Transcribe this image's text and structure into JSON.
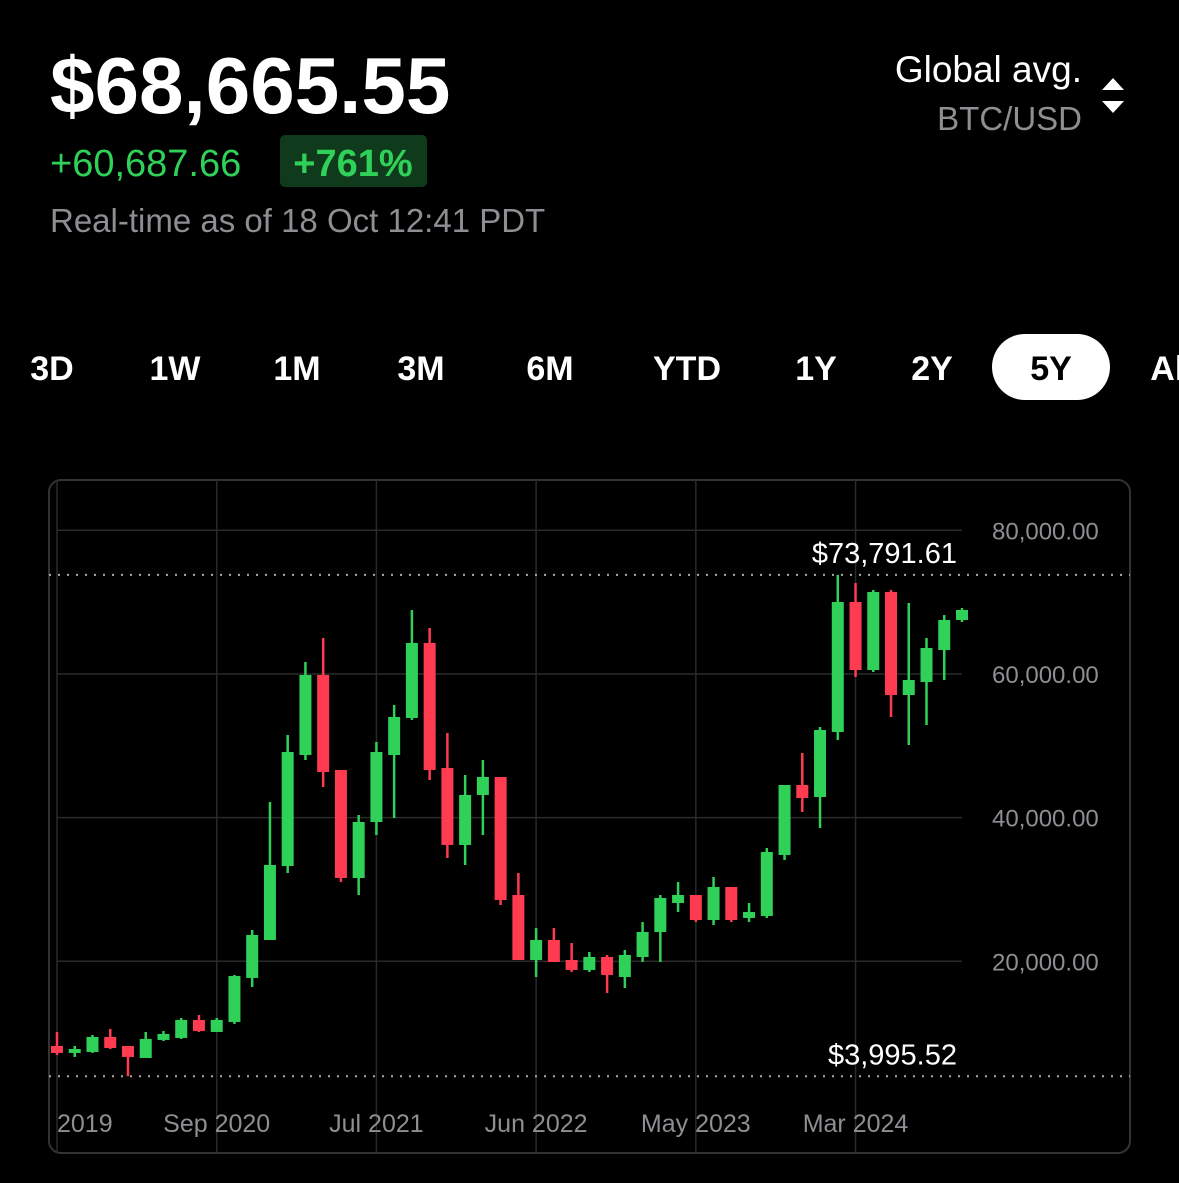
{
  "header": {
    "price": "$68,665.55",
    "change": "+60,687.66",
    "change_percent": "+761%",
    "timestamp": "Real-time as of 18 Oct 12:41 PDT",
    "source": "Global avg.",
    "pair": "BTC/USD"
  },
  "range_tabs": [
    "3D",
    "1W",
    "1M",
    "3M",
    "6M",
    "YTD",
    "1Y",
    "2Y",
    "5Y",
    "All"
  ],
  "selected_range": "5Y",
  "chart_data": {
    "type": "candlestick",
    "categories": [
      "2019",
      null,
      null,
      null,
      null,
      null,
      null,
      null,
      null,
      "Sep 2020",
      null,
      null,
      null,
      null,
      null,
      null,
      null,
      null,
      "Jul 2021",
      null,
      null,
      null,
      null,
      null,
      null,
      null,
      null,
      "Jun 2022",
      null,
      null,
      null,
      null,
      null,
      null,
      null,
      null,
      "May 2023",
      null,
      null,
      null,
      null,
      null,
      null,
      null,
      null,
      "Mar 2024",
      null,
      null,
      null,
      null,
      null,
      null
    ],
    "open": [
      8213,
      7238,
      7378,
      9466,
      8213,
      6542,
      9049,
      9327,
      11832,
      10162,
      11554,
      17678,
      22968,
      33269,
      48720,
      59856,
      46632,
      31598,
      39394,
      48720,
      53870,
      64310,
      46910,
      36192,
      43152,
      45658,
      29232,
      20184,
      22968,
      20184,
      18792,
      20602,
      17818,
      20602,
      24082,
      28118,
      29232,
      25752,
      30346,
      26030,
      26309,
      34800,
      44544,
      42874,
      51922,
      70018,
      60552,
      71410,
      57072,
      58882,
      63336,
      67512
    ],
    "high": [
      10162,
      8213,
      9744,
      10579,
      8213,
      10162,
      10300,
      12110,
      12528,
      12110,
      18096,
      24360,
      42178,
      51504,
      61666,
      65006,
      46632,
      40368,
      50530,
      55680,
      68904,
      66398,
      51782,
      45936,
      48024,
      45658,
      32294,
      24638,
      24638,
      22550,
      21298,
      20880,
      21576,
      25474,
      29232,
      31042,
      29232,
      31738,
      30346,
      28118,
      35774,
      44544,
      48998,
      52618,
      73791.61,
      72662,
      71688,
      71688,
      69878,
      65006,
      68208,
      69182
    ],
    "low": [
      6960,
      6682,
      7238,
      7795,
      3995.52,
      6542,
      8909,
      9188,
      10162,
      10162,
      11275,
      16426,
      22968,
      32294,
      48024,
      44266,
      31042,
      29232,
      37584,
      39950,
      53592,
      45240,
      34382,
      33408,
      37584,
      27840,
      20184,
      17818,
      19906,
      18514,
      18514,
      15590,
      16286,
      19906,
      19906,
      26866,
      25474,
      25056,
      25474,
      25474,
      26030,
      34104,
      40786,
      38558,
      50808,
      59578,
      60274,
      54010,
      50112,
      52896,
      59160,
      67234
    ],
    "close": [
      7238,
      7795,
      9466,
      7934,
      6682,
      9188,
      9883,
      11832,
      10300,
      11832,
      17957,
      23664,
      33408,
      49138,
      59856,
      46354,
      31598,
      39394,
      49138,
      54010,
      64310,
      46632,
      36192,
      43152,
      45658,
      28536,
      20184,
      22968,
      19906,
      18792,
      20602,
      18096,
      20880,
      24082,
      28814,
      29232,
      25752,
      30346,
      25752,
      26866,
      35218,
      44544,
      42734,
      52200,
      70018,
      60552,
      71410,
      57072,
      59160,
      63614,
      67512,
      68904
    ],
    "up_color": "#30d158",
    "down_color": "#ff3b52",
    "ylim": [
      2000,
      87000
    ],
    "yticks": [
      {
        "value": 20000,
        "label": "20,000.00"
      },
      {
        "value": 40000,
        "label": "40,000.00"
      },
      {
        "value": 60000,
        "label": "60,000.00"
      },
      {
        "value": 80000,
        "label": "80,000.00"
      }
    ],
    "grid": true,
    "max_line": {
      "value": 73791.61,
      "label": "$73,791.61"
    },
    "min_line": {
      "value": 3995.52,
      "label": "$3,995.52"
    }
  }
}
